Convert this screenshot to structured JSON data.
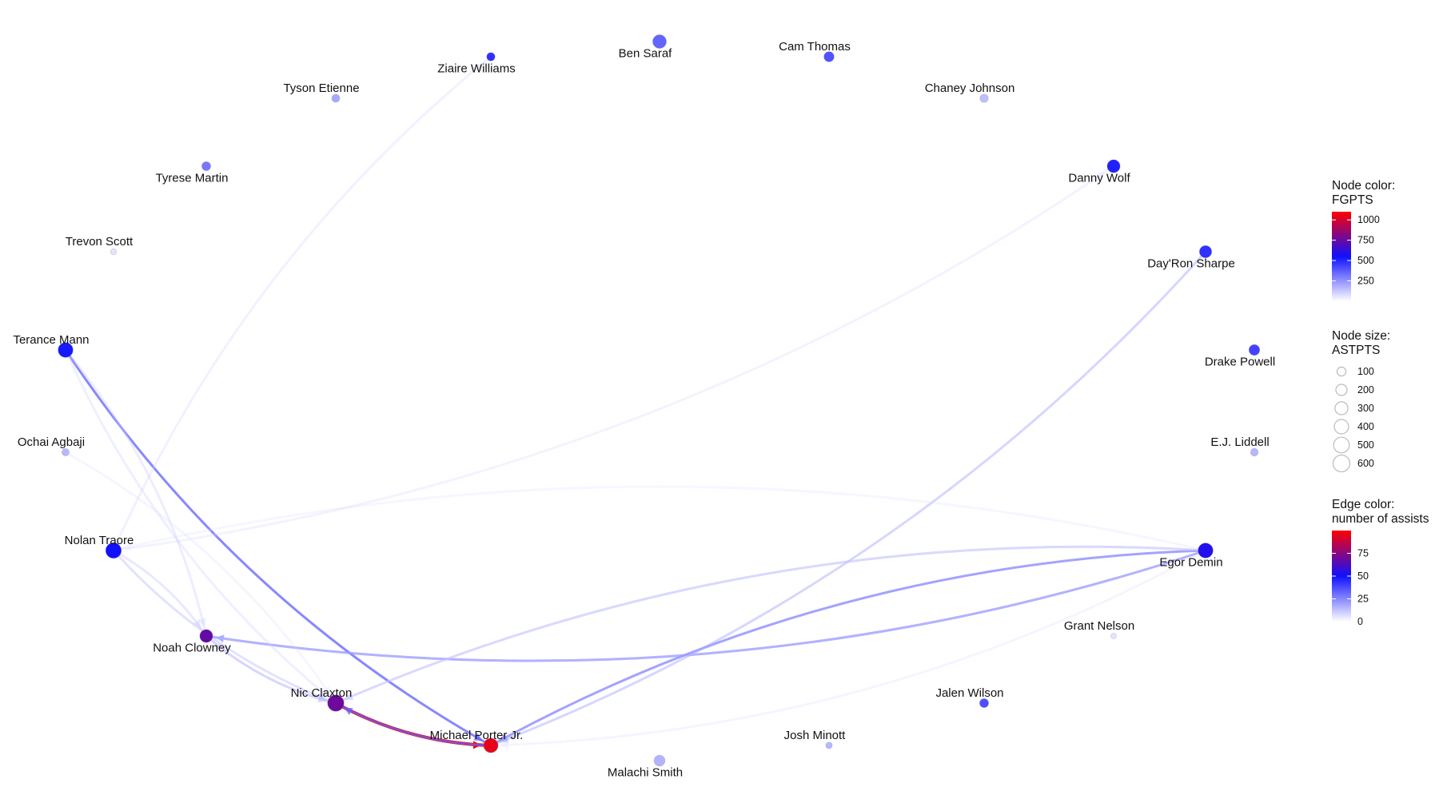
{
  "chart_data": {
    "type": "network",
    "nodes": [
      {
        "id": "ziaire-williams",
        "label": "Ziaire Williams",
        "fgpts": 520,
        "astpts": 80
      },
      {
        "id": "ben-saraf",
        "label": "Ben Saraf",
        "fgpts": 380,
        "astpts": 350
      },
      {
        "id": "cam-thomas",
        "label": "Cam Thomas",
        "fgpts": 430,
        "astpts": 150
      },
      {
        "id": "tyson-etienne",
        "label": "Tyson Etienne",
        "fgpts": 200,
        "astpts": 70
      },
      {
        "id": "chaney-johnson",
        "label": "Chaney Johnson",
        "fgpts": 140,
        "astpts": 80
      },
      {
        "id": "tyrese-martin",
        "label": "Tyrese Martin",
        "fgpts": 330,
        "astpts": 100
      },
      {
        "id": "danny-wolf",
        "label": "Danny Wolf",
        "fgpts": 560,
        "astpts": 300
      },
      {
        "id": "trevon-scott",
        "label": "Trevon Scott",
        "fgpts": 40,
        "astpts": 20
      },
      {
        "id": "dayron-sharpe",
        "label": "Day'Ron Sharpe",
        "fgpts": 520,
        "astpts": 260
      },
      {
        "id": "terance-mann",
        "label": "Terance Mann",
        "fgpts": 580,
        "astpts": 440
      },
      {
        "id": "drake-powell",
        "label": "Drake Powell",
        "fgpts": 470,
        "astpts": 180
      },
      {
        "id": "ochai-agbaji",
        "label": "Ochai Agbaji",
        "fgpts": 160,
        "astpts": 50
      },
      {
        "id": "ej-liddell",
        "label": "E.J. Liddell",
        "fgpts": 160,
        "astpts": 60
      },
      {
        "id": "nolan-traore",
        "label": "Nolan Traore",
        "fgpts": 610,
        "astpts": 500
      },
      {
        "id": "egor-demin",
        "label": "Egor Demin",
        "fgpts": 640,
        "astpts": 440
      },
      {
        "id": "grant-nelson",
        "label": "Grant Nelson",
        "fgpts": 40,
        "astpts": 15
      },
      {
        "id": "noah-clowney",
        "label": "Noah Clowney",
        "fgpts": 780,
        "astpts": 300
      },
      {
        "id": "nic-claxton",
        "label": "Nic Claxton",
        "fgpts": 800,
        "astpts": 560
      },
      {
        "id": "jalen-wilson",
        "label": "Jalen Wilson",
        "fgpts": 440,
        "astpts": 100
      },
      {
        "id": "michael-porter-jr",
        "label": "Michael Porter Jr.",
        "fgpts": 1050,
        "astpts": 400
      },
      {
        "id": "josh-minott",
        "label": "Josh Minott",
        "fgpts": 160,
        "astpts": 30
      },
      {
        "id": "malachi-smith",
        "label": "Malachi Smith",
        "fgpts": 170,
        "astpts": 190
      }
    ],
    "edges": [
      {
        "source": "nic-claxton",
        "target": "michael-porter-jr",
        "assists": 100
      },
      {
        "source": "michael-porter-jr",
        "target": "nic-claxton",
        "assists": 35
      },
      {
        "source": "terance-mann",
        "target": "michael-porter-jr",
        "assists": 35
      },
      {
        "source": "egor-demin",
        "target": "noah-clowney",
        "assists": 30
      },
      {
        "source": "egor-demin",
        "target": "michael-porter-jr",
        "assists": 30
      },
      {
        "source": "dayron-sharpe",
        "target": "michael-porter-jr",
        "assists": 18
      },
      {
        "source": "egor-demin",
        "target": "nic-claxton",
        "assists": 16
      },
      {
        "source": "nolan-traore",
        "target": "ziaire-williams",
        "assists": 8
      },
      {
        "source": "nolan-traore",
        "target": "danny-wolf",
        "assists": 7
      },
      {
        "source": "nolan-traore",
        "target": "noah-clowney",
        "assists": 12
      },
      {
        "source": "nolan-traore",
        "target": "nic-claxton",
        "assists": 14
      },
      {
        "source": "terance-mann",
        "target": "noah-clowney",
        "assists": 10
      },
      {
        "source": "terance-mann",
        "target": "nic-claxton",
        "assists": 9
      },
      {
        "source": "ochai-agbaji",
        "target": "nic-claxton",
        "assists": 6
      },
      {
        "source": "noah-clowney",
        "target": "nic-claxton",
        "assists": 16
      },
      {
        "source": "nic-claxton",
        "target": "noah-clowney",
        "assists": 10
      },
      {
        "source": "egor-demin",
        "target": "nolan-traore",
        "assists": 5
      },
      {
        "source": "egor-demin",
        "target": "noah-clowney",
        "assists": 7
      },
      {
        "source": "egor-demin",
        "target": "nic-claxton",
        "assists": 8
      },
      {
        "source": "egor-demin",
        "target": "michael-porter-jr",
        "assists": 6
      }
    ],
    "legends": {
      "node_color": {
        "title_line1": "Node color:",
        "title_line2": "FGPTS",
        "ticks": [
          "1000",
          "750",
          "500",
          "250"
        ],
        "tick_values": [
          1000,
          750,
          500,
          250
        ],
        "range": [
          0,
          1100
        ]
      },
      "node_size": {
        "title_line1": "Node size:",
        "title_line2": "ASTPTS",
        "ticks": [
          "100",
          "200",
          "300",
          "400",
          "500",
          "600"
        ],
        "tick_values": [
          100,
          200,
          300,
          400,
          500,
          600
        ]
      },
      "edge_color": {
        "title_line1": "Edge color:",
        "title_line2": "number of assists",
        "ticks": [
          "75",
          "50",
          "25",
          "0"
        ],
        "tick_values": [
          75,
          50,
          25,
          0
        ],
        "range": [
          0,
          100
        ]
      }
    },
    "colors": {
      "low": "#ffffff",
      "mid": "#1010ff",
      "high": "#ff0000"
    }
  }
}
